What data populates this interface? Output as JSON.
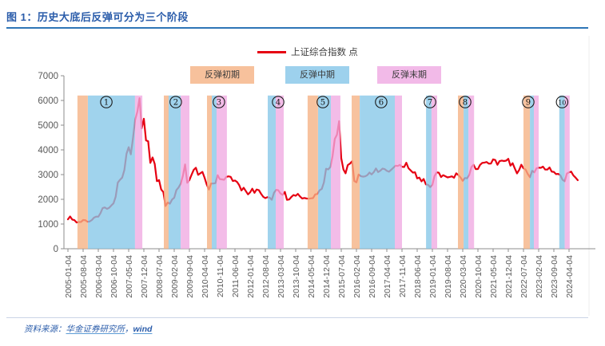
{
  "figure": {
    "title": "图 1：历史大底后反弹可分为三个阶段",
    "source_prefix": "资料来源：",
    "source_link1": "华金证券研究所",
    "source_separator": "，",
    "source_link2": "wind"
  },
  "legend": {
    "line_label": "上证综合指数 点",
    "line_color": "#E60012",
    "phases": [
      {
        "label": "反弹初期",
        "color": "#F5B183"
      },
      {
        "label": "反弹中期",
        "color": "#85C6E8"
      },
      {
        "label": "反弹末期",
        "color": "#EFA9E2"
      }
    ]
  },
  "chart_data": {
    "type": "line",
    "title": "上证综合指数 点",
    "ylabel": "点",
    "ylim": [
      0,
      7000
    ],
    "yticks": [
      0,
      1000,
      2000,
      3000,
      4000,
      5000,
      6000,
      7000
    ],
    "grid": false,
    "x_start": "2005-01",
    "x_step": "monthly",
    "x_tick_every_months": 7,
    "x_tick_labels": [
      "2005-01-04",
      "2005-08-04",
      "2006-03-04",
      "2006-10-04",
      "2007-05-04",
      "2007-12-04",
      "2008-07-04",
      "2009-02-04",
      "2009-09-04",
      "2010-04-04",
      "2010-11-04",
      "2011-06-04",
      "2012-01-04",
      "2012-08-04",
      "2013-03-04",
      "2013-10-04",
      "2014-05-04",
      "2014-12-04",
      "2015-07-04",
      "2016-02-04",
      "2016-09-04",
      "2017-04-04",
      "2017-11-04",
      "2018-06-04",
      "2019-01-04",
      "2019-08-04",
      "2020-03-04",
      "2020-10-04",
      "2021-05-04",
      "2021-12-04",
      "2022-07-04",
      "2023-02-04",
      "2023-09-04",
      "2024-04-04"
    ],
    "series": [
      {
        "name": "上证综合指数",
        "unit": "点",
        "values": [
          1191,
          1306,
          1181,
          1159,
          1060,
          1081,
          1083,
          1162,
          1155,
          1092,
          1099,
          1161,
          1258,
          1299,
          1298,
          1440,
          1641,
          1672,
          1612,
          1658,
          1752,
          1837,
          2099,
          2675,
          2786,
          2881,
          3183,
          3841,
          4109,
          3820,
          4471,
          5218,
          5552,
          6092,
          4872,
          5262,
          4383,
          4348,
          3473,
          3693,
          3433,
          2736,
          2776,
          2397,
          2294,
          1729,
          1871,
          1821,
          1991,
          2063,
          2373,
          2477,
          2632,
          2959,
          3412,
          2668,
          2779,
          2995,
          3195,
          3277,
          2989,
          3052,
          3109,
          2871,
          2592,
          2398,
          2638,
          2639,
          2656,
          2979,
          2820,
          2808,
          2790,
          2905,
          2928,
          2911,
          2743,
          2762,
          2701,
          2567,
          2359,
          2468,
          2333,
          2199,
          2285,
          2428,
          2262,
          2396,
          2372,
          2225,
          2103,
          2047,
          2086,
          2068,
          1980,
          2269,
          2385,
          2365,
          2236,
          2177,
          2300,
          1979,
          1993,
          2098,
          2175,
          2141,
          2220,
          2116,
          2033,
          2056,
          2033,
          2026,
          2039,
          2048,
          2201,
          2217,
          2364,
          2420,
          2683,
          3235,
          3210,
          3310,
          3748,
          4442,
          4612,
          5166,
          3664,
          3206,
          3053,
          3383,
          3445,
          3539,
          2738,
          2688,
          3004,
          2938,
          2917,
          2930,
          2979,
          3085,
          3005,
          3100,
          3250,
          3104,
          3159,
          3242,
          3223,
          3155,
          3117,
          3192,
          3273,
          3361,
          3349,
          3393,
          3317,
          3307,
          3481,
          3259,
          3169,
          3082,
          3095,
          2847,
          2876,
          2725,
          2821,
          2603,
          2588,
          2494,
          2585,
          2941,
          3091,
          3078,
          2899,
          2979,
          2933,
          2886,
          2905,
          2929,
          2872,
          3050,
          2977,
          2880,
          2750,
          2860,
          2852,
          2985,
          3310,
          3396,
          3218,
          3225,
          3392,
          3473,
          3483,
          3509,
          3442,
          3447,
          3615,
          3591,
          3397,
          3544,
          3568,
          3547,
          3564,
          3640,
          3361,
          3462,
          3252,
          3047,
          3186,
          3399,
          3253,
          3202,
          3024,
          2893,
          3151,
          3089,
          3255,
          3280,
          3273,
          3323,
          3205,
          3202,
          3291,
          3120,
          3110,
          3019,
          3030,
          2975,
          2789,
          2730,
          3041,
          3090,
          3120,
          2967,
          2880,
          2775
        ]
      }
    ],
    "band_top_value": 6200,
    "bands": [
      {
        "n": "1",
        "glyph": "①",
        "marker_month": 17.7,
        "segments": [
          [
            0,
            4.4,
            9.2
          ],
          [
            1,
            9.2,
            30.9
          ],
          [
            2,
            30.9,
            34.3
          ]
        ]
      },
      {
        "n": "2",
        "glyph": "②",
        "marker_month": 49.7,
        "segments": [
          [
            0,
            44.2,
            46.4
          ],
          [
            1,
            46.4,
            52.0
          ],
          [
            2,
            52.0,
            56.0
          ]
        ]
      },
      {
        "n": "3",
        "glyph": "③",
        "marker_month": 69.6,
        "segments": [
          [
            0,
            64.1,
            66.3
          ],
          [
            1,
            66.3,
            68.5
          ],
          [
            2,
            68.5,
            73.3
          ]
        ]
      },
      {
        "n": "4",
        "glyph": "④",
        "marker_month": 96.9,
        "segments": [
          [
            1,
            92.1,
            95.8
          ],
          [
            2,
            95.8,
            99.5
          ]
        ]
      },
      {
        "n": "5",
        "glyph": "⑤",
        "marker_month": 117.5,
        "segments": [
          [
            0,
            110.5,
            115.3
          ],
          [
            1,
            115.3,
            121.2
          ],
          [
            2,
            121.2,
            125.6
          ]
        ]
      },
      {
        "n": "6",
        "glyph": "⑥",
        "marker_month": 144.4,
        "segments": [
          [
            0,
            130.8,
            134.5
          ],
          [
            1,
            134.5,
            150.7
          ],
          [
            2,
            150.7,
            154.0
          ]
        ]
      },
      {
        "n": "7",
        "glyph": "⑦",
        "marker_month": 166.9,
        "segments": [
          [
            1,
            165.1,
            167.6
          ],
          [
            2,
            167.6,
            170.2
          ]
        ]
      },
      {
        "n": "8",
        "glyph": "⑧",
        "marker_month": 183.1,
        "segments": [
          [
            0,
            179.8,
            182.4
          ],
          [
            1,
            182.4,
            184.6
          ],
          [
            2,
            184.6,
            187.2
          ]
        ]
      },
      {
        "n": "9",
        "glyph": "⑨",
        "marker_month": 212.2,
        "segments": [
          [
            0,
            210.0,
            213.0
          ],
          [
            1,
            213.0,
            214.8
          ],
          [
            2,
            214.8,
            217.0
          ]
        ]
      },
      {
        "n": "10",
        "glyph": "⑩",
        "marker_month": 227.8,
        "segments": [
          [
            1,
            226.5,
            229.0
          ],
          [
            2,
            229.0,
            231.3
          ]
        ]
      }
    ]
  }
}
